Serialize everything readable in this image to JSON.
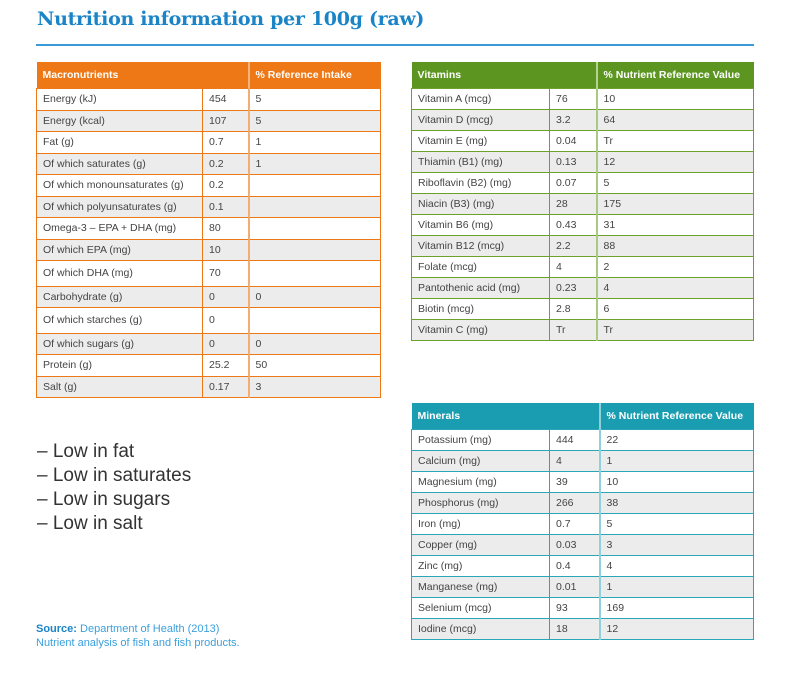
{
  "title": "Nutrition information per 100g (raw)",
  "colors": {
    "title": "#1a84c7",
    "macronutrients": "#ee7716",
    "vitamins": "#5c9620",
    "minerals": "#1a9db0"
  },
  "macronutrients": {
    "header": {
      "label": "Macronutrients",
      "ri": "% Reference Intake"
    },
    "rows": [
      {
        "name": "Energy (kJ)",
        "value": "454",
        "ri": "5"
      },
      {
        "name": "Energy (kcal)",
        "value": "107",
        "ri": "5"
      },
      {
        "name": "Fat (g)",
        "value": "0.7",
        "ri": "1"
      },
      {
        "name": "Of which saturates (g)",
        "value": "0.2",
        "ri": "1"
      },
      {
        "name": "Of which monounsaturates (g)",
        "value": "0.2",
        "ri": ""
      },
      {
        "name": "Of which polyunsaturates (g)",
        "value": "0.1",
        "ri": ""
      },
      {
        "name": "Omega-3 – EPA + DHA (mg)",
        "value": "80",
        "ri": ""
      },
      {
        "name": "Of which EPA (mg)",
        "value": "10",
        "ri": ""
      },
      {
        "name": "Of which DHA (mg)",
        "value": "70",
        "ri": ""
      },
      {
        "name": "Carbohydrate (g)",
        "value": "0",
        "ri": "0"
      },
      {
        "name": "Of which starches (g)",
        "value": "0",
        "ri": ""
      },
      {
        "name": "Of which sugars (g)",
        "value": "0",
        "ri": "0"
      },
      {
        "name": "Protein (g)",
        "value": "25.2",
        "ri": "50"
      },
      {
        "name": "Salt (g)",
        "value": "0.17",
        "ri": "3"
      }
    ]
  },
  "vitamins": {
    "header": {
      "label": "Vitamins",
      "nrv": "% Nutrient Reference Value"
    },
    "rows": [
      {
        "name": "Vitamin A (mcg)",
        "value": "76",
        "nrv": "10"
      },
      {
        "name": "Vitamin D (mcg)",
        "value": "3.2",
        "nrv": "64"
      },
      {
        "name": "Vitamin E (mg)",
        "value": "0.04",
        "nrv": "Tr"
      },
      {
        "name": "Thiamin (B1) (mg)",
        "value": "0.13",
        "nrv": "12"
      },
      {
        "name": "Riboflavin (B2) (mg)",
        "value": "0.07",
        "nrv": "5"
      },
      {
        "name": "Niacin (B3) (mg)",
        "value": "28",
        "nrv": "175"
      },
      {
        "name": "Vitamin B6 (mg)",
        "value": "0.43",
        "nrv": "31"
      },
      {
        "name": "Vitamin B12 (mcg)",
        "value": "2.2",
        "nrv": "88"
      },
      {
        "name": "Folate (mcg)",
        "value": "4",
        "nrv": "2"
      },
      {
        "name": "Pantothenic acid (mg)",
        "value": "0.23",
        "nrv": "4"
      },
      {
        "name": "Biotin (mcg)",
        "value": "2.8",
        "nrv": "6"
      },
      {
        "name": "Vitamin C (mg)",
        "value": "Tr",
        "nrv": "Tr"
      }
    ]
  },
  "minerals": {
    "header": {
      "label": "Minerals",
      "nrv": "% Nutrient Reference Value"
    },
    "rows": [
      {
        "name": "Potassium (mg)",
        "value": "444",
        "nrv": "22"
      },
      {
        "name": "Calcium (mg)",
        "value": "4",
        "nrv": "1"
      },
      {
        "name": "Magnesium (mg)",
        "value": "39",
        "nrv": "10"
      },
      {
        "name": "Phosphorus (mg)",
        "value": "266",
        "nrv": "38"
      },
      {
        "name": "Iron (mg)",
        "value": "0.7",
        "nrv": "5"
      },
      {
        "name": "Copper (mg)",
        "value": "0.03",
        "nrv": "3"
      },
      {
        "name": "Zinc (mg)",
        "value": "0.4",
        "nrv": "4"
      },
      {
        "name": "Manganese (mg)",
        "value": "0.01",
        "nrv": "1"
      },
      {
        "name": "Selenium (mcg)",
        "value": "93",
        "nrv": "169"
      },
      {
        "name": "Iodine (mcg)",
        "value": "18",
        "nrv": "12"
      }
    ]
  },
  "claims": [
    "– Low in fat",
    "– Low in saturates",
    "– Low in sugars",
    "– Low in salt"
  ],
  "source": {
    "label": "Source:",
    "line1": "Department of Health (2013)",
    "line2": "Nutrient analysis of fish and fish products."
  }
}
